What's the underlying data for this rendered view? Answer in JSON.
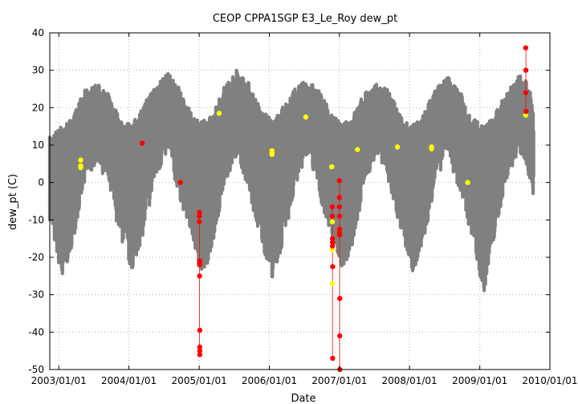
{
  "chart_data": {
    "type": "scatter",
    "title": "CEOP CPPA1SGP E3_Le_Roy  dew_pt",
    "xlabel": "Date",
    "ylabel": "dew_pt (C)",
    "xlim": [
      "2002/11/15",
      "2010/01/01"
    ],
    "ylim": [
      -50,
      40
    ],
    "x_ticks": [
      "2003/01/01",
      "2004/01/01",
      "2005/01/01",
      "2006/01/01",
      "2007/01/01",
      "2008/01/01",
      "2009/01/01",
      "2010/01/01"
    ],
    "y_ticks": [
      -50,
      -40,
      -30,
      -20,
      -10,
      0,
      10,
      20,
      30,
      40
    ],
    "grid": true,
    "legend": "none",
    "colors": {
      "background_series": "#808080",
      "flagged": "#ff0000",
      "questionable": "#ffff00",
      "grid": "#b0b0b0"
    },
    "series": [
      {
        "color": "#808080",
        "description_points": "dense hourly band",
        "seasonal_envelope": [
          {
            "x": "2002/11/15",
            "low": -6,
            "high": 10
          },
          {
            "x": "2003/01/20",
            "low": -23,
            "high": 13
          },
          {
            "x": "2003/03/15",
            "low": -12,
            "high": 15
          },
          {
            "x": "2003/05/10",
            "low": 2,
            "high": 22
          },
          {
            "x": "2003/07/20",
            "low": 10,
            "high": 24
          },
          {
            "x": "2003/09/20",
            "low": 2,
            "high": 21
          },
          {
            "x": "2003/11/15",
            "low": -10,
            "high": 15
          },
          {
            "x": "2004/01/15",
            "low": -20,
            "high": 13
          },
          {
            "x": "2004/03/15",
            "low": -10,
            "high": 18
          },
          {
            "x": "2004/05/15",
            "low": 4,
            "high": 24
          },
          {
            "x": "2004/07/20",
            "low": 12,
            "high": 27
          },
          {
            "x": "2004/09/20",
            "low": 0,
            "high": 23
          },
          {
            "x": "2004/11/20",
            "low": -10,
            "high": 16
          },
          {
            "x": "2005/01/20",
            "low": -22,
            "high": 14
          },
          {
            "x": "2005/03/15",
            "low": -12,
            "high": 16
          },
          {
            "x": "2005/05/15",
            "low": 4,
            "high": 24
          },
          {
            "x": "2005/07/20",
            "low": 12,
            "high": 28
          },
          {
            "x": "2005/09/20",
            "low": 0,
            "high": 24
          },
          {
            "x": "2005/11/20",
            "low": -12,
            "high": 17
          },
          {
            "x": "2006/01/20",
            "low": -22,
            "high": 14
          },
          {
            "x": "2006/03/15",
            "low": -12,
            "high": 18
          },
          {
            "x": "2006/05/15",
            "low": 2,
            "high": 23
          },
          {
            "x": "2006/07/20",
            "low": 12,
            "high": 25
          },
          {
            "x": "2006/09/20",
            "low": 0,
            "high": 22
          },
          {
            "x": "2006/11/20",
            "low": -10,
            "high": 16
          },
          {
            "x": "2007/01/20",
            "low": -20,
            "high": 13
          },
          {
            "x": "2007/03/15",
            "low": -12,
            "high": 16
          },
          {
            "x": "2007/05/15",
            "low": 4,
            "high": 22
          },
          {
            "x": "2007/07/20",
            "low": 12,
            "high": 24
          },
          {
            "x": "2007/09/20",
            "low": 2,
            "high": 22
          },
          {
            "x": "2007/11/20",
            "low": -10,
            "high": 15
          },
          {
            "x": "2008/01/20",
            "low": -20,
            "high": 13
          },
          {
            "x": "2008/03/15",
            "low": -12,
            "high": 16
          },
          {
            "x": "2008/05/15",
            "low": 4,
            "high": 23
          },
          {
            "x": "2008/07/20",
            "low": 12,
            "high": 26
          },
          {
            "x": "2008/09/20",
            "low": 0,
            "high": 22
          },
          {
            "x": "2008/11/20",
            "low": -10,
            "high": 15
          },
          {
            "x": "2009/01/20",
            "low": -26,
            "high": 13
          },
          {
            "x": "2009/03/15",
            "low": -12,
            "high": 15
          },
          {
            "x": "2009/05/15",
            "low": 4,
            "high": 22
          },
          {
            "x": "2009/07/20",
            "low": 12,
            "high": 26
          },
          {
            "x": "2009/08/25",
            "low": 10,
            "high": 26
          },
          {
            "x": "2009/09/30",
            "low": 2,
            "high": 20
          },
          {
            "x": "2009/10/10",
            "low": -2,
            "high": 14
          }
        ]
      },
      {
        "color": "#ff0000",
        "points": [
          {
            "x": "2004/03/10",
            "y": 10.5
          },
          {
            "x": "2004/09/25",
            "y": 0
          },
          {
            "x": "2005/01/02",
            "y": -8
          },
          {
            "x": "2005/01/02",
            "y": -9
          },
          {
            "x": "2005/01/02",
            "y": -10.5
          },
          {
            "x": "2005/01/03",
            "y": -21
          },
          {
            "x": "2005/01/03",
            "y": -21.5
          },
          {
            "x": "2005/01/03",
            "y": -22
          },
          {
            "x": "2005/01/03",
            "y": -25
          },
          {
            "x": "2005/01/04",
            "y": -39.5
          },
          {
            "x": "2005/01/04",
            "y": -44
          },
          {
            "x": "2005/01/04",
            "y": -45
          },
          {
            "x": "2005/01/04",
            "y": -46
          },
          {
            "x": "2006/11/25",
            "y": -6.5
          },
          {
            "x": "2006/11/25",
            "y": -9
          },
          {
            "x": "2006/11/26",
            "y": -15
          },
          {
            "x": "2006/11/26",
            "y": -16
          },
          {
            "x": "2006/11/26",
            "y": -17
          },
          {
            "x": "2006/11/27",
            "y": -22.5
          },
          {
            "x": "2006/11/27",
            "y": -47
          },
          {
            "x": "2007/01/01",
            "y": 0.5
          },
          {
            "x": "2007/01/01",
            "y": -4
          },
          {
            "x": "2007/01/01",
            "y": -6.5
          },
          {
            "x": "2007/01/02",
            "y": -9
          },
          {
            "x": "2007/01/02",
            "y": -12.5
          },
          {
            "x": "2007/01/02",
            "y": -13.5
          },
          {
            "x": "2007/01/02",
            "y": -14
          },
          {
            "x": "2007/01/03",
            "y": -31
          },
          {
            "x": "2007/01/03",
            "y": -41
          },
          {
            "x": "2007/01/03",
            "y": -50
          },
          {
            "x": "2009/08/28",
            "y": 36
          },
          {
            "x": "2009/08/29",
            "y": 30
          },
          {
            "x": "2009/08/29",
            "y": 24
          },
          {
            "x": "2009/08/30",
            "y": 19
          }
        ]
      },
      {
        "color": "#ffff00",
        "points": [
          {
            "x": "2003/04/25",
            "y": 6
          },
          {
            "x": "2003/04/25",
            "y": 4
          },
          {
            "x": "2003/04/25",
            "y": 4.5
          },
          {
            "x": "2005/04/15",
            "y": 18.5
          },
          {
            "x": "2006/01/15",
            "y": 8
          },
          {
            "x": "2006/01/15",
            "y": 8.5
          },
          {
            "x": "2006/01/15",
            "y": 7.5
          },
          {
            "x": "2006/07/10",
            "y": 17.5
          },
          {
            "x": "2006/11/22",
            "y": 4.2
          },
          {
            "x": "2006/11/25",
            "y": -10.5
          },
          {
            "x": "2006/11/25",
            "y": -18
          },
          {
            "x": "2006/11/26",
            "y": -27
          },
          {
            "x": "2007/04/05",
            "y": 8.8
          },
          {
            "x": "2007/10/30",
            "y": 9.5
          },
          {
            "x": "2008/04/25",
            "y": 9
          },
          {
            "x": "2008/04/25",
            "y": 9.5
          },
          {
            "x": "2008/10/30",
            "y": 0
          },
          {
            "x": "2009/08/28",
            "y": 18
          }
        ]
      }
    ],
    "connectors": [
      {
        "x": "2006/11/26",
        "y1": -47,
        "y2": -6.5
      },
      {
        "x": "2007/01/02",
        "y1": -50,
        "y2": 0.5
      },
      {
        "x": "2005/01/03",
        "y1": -46,
        "y2": -8
      },
      {
        "x": "2009/08/29",
        "y1": 18,
        "y2": 36
      }
    ]
  }
}
